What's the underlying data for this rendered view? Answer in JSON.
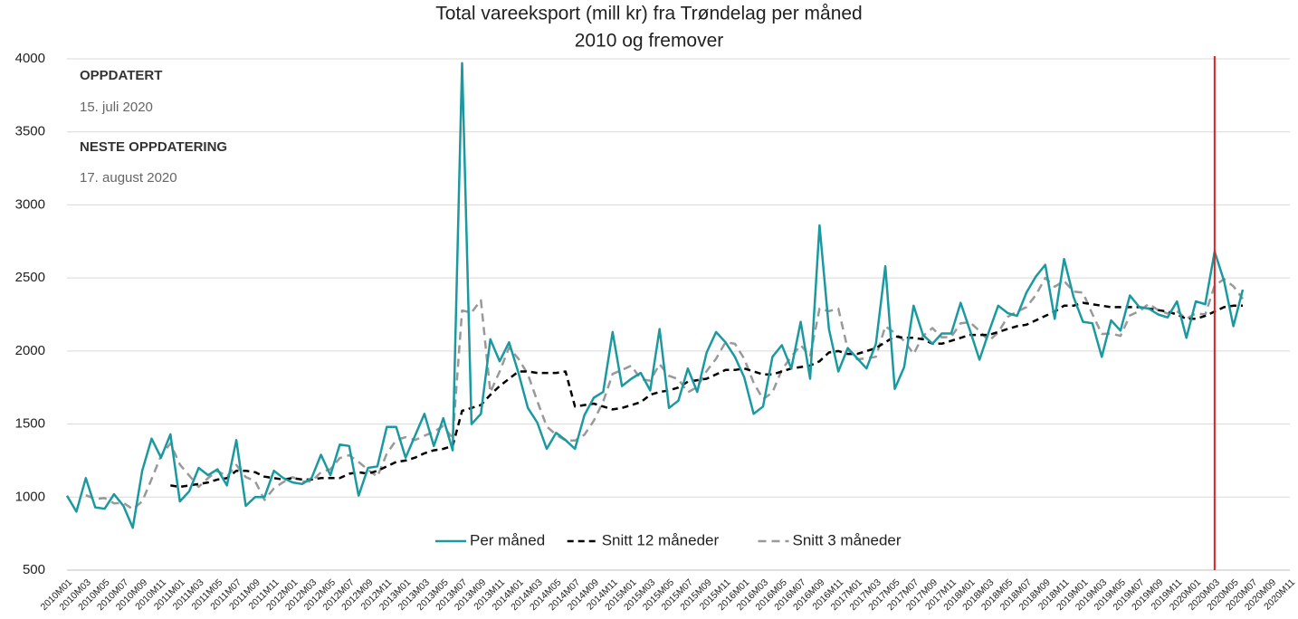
{
  "chart_data": {
    "type": "line",
    "title": "Total vareeksport (mill kr) fra Trøndelag per måned",
    "subtitle": "2010 og fremover",
    "annotations": [
      "OPPDATERT",
      "15. juli 2020",
      "NESTE OPPDATERING",
      "17. august 2020"
    ],
    "categories": [
      "2010M01",
      null,
      "2010M03",
      null,
      "2010M05",
      null,
      "2010M07",
      null,
      "2010M09",
      null,
      "2010M11",
      null,
      "2011M01",
      null,
      "2011M03",
      null,
      "2011M05",
      null,
      "2011M07",
      null,
      "2011M09",
      null,
      "2011M11",
      null,
      "2012M01",
      null,
      "2012M03",
      null,
      "2012M05",
      null,
      "2012M07",
      null,
      "2012M09",
      null,
      "2012M11",
      null,
      "2013M01",
      null,
      "2013M03",
      null,
      "2013M05",
      null,
      "2013M07",
      null,
      "2013M09",
      null,
      "2013M11",
      null,
      "2014M01",
      null,
      "2014M03",
      null,
      "2014M05",
      null,
      "2014M07",
      null,
      "2014M09",
      null,
      "2014M11",
      null,
      "2015M01",
      null,
      "2015M03",
      null,
      "2015M05",
      null,
      "2015M07",
      null,
      "2015M09",
      null,
      "2015M11",
      null,
      "2016M01",
      null,
      "2016M03",
      null,
      "2016M05",
      null,
      "2016M07",
      null,
      "2016M09",
      null,
      "2016M11",
      null,
      "2017M01",
      null,
      "2017M03",
      null,
      "2017M05",
      null,
      "2017M07",
      null,
      "2017M09",
      null,
      "2017M11",
      null,
      "2018M01",
      null,
      "2018M03",
      null,
      "2018M05",
      null,
      "2018M07",
      null,
      "2018M09",
      null,
      "2018M11",
      null,
      "2019M01",
      null,
      "2019M03",
      null,
      "2019M05",
      null,
      "2019M07",
      null,
      "2019M09",
      null,
      "2019M11",
      null,
      "2020M01",
      null,
      "2020M03",
      null,
      "2020M05",
      null,
      "2020M07",
      null,
      "2020M09",
      null,
      "2020M11"
    ],
    "series": [
      {
        "name": "Per måned",
        "color": "#1a9aa0",
        "dash": "none",
        "values": [
          1010,
          900,
          1130,
          930,
          920,
          1020,
          940,
          790,
          1180,
          1400,
          1270,
          1430,
          970,
          1040,
          1200,
          1150,
          1190,
          1080,
          1390,
          940,
          1000,
          1000,
          1180,
          1130,
          1100,
          1090,
          1130,
          1290,
          1150,
          1360,
          1350,
          1010,
          1200,
          1210,
          1480,
          1480,
          1270,
          1420,
          1570,
          1350,
          1540,
          1320,
          3970,
          1500,
          1570,
          2080,
          1930,
          2060,
          1850,
          1610,
          1510,
          1330,
          1440,
          1390,
          1330,
          1560,
          1680,
          1720,
          2130,
          1760,
          1810,
          1850,
          1730,
          2150,
          1610,
          1660,
          1880,
          1720,
          1990,
          2130,
          2060,
          1960,
          1820,
          1570,
          1620,
          1960,
          2040,
          1880,
          2200,
          1810,
          2860,
          2150,
          1860,
          2020,
          1950,
          1880,
          2050,
          2580,
          1740,
          1890,
          2310,
          2110,
          2050,
          2120,
          2120,
          2330,
          2140,
          1940,
          2130,
          2310,
          2260,
          2240,
          2400,
          2510,
          2590,
          2220,
          2630,
          2370,
          2200,
          2190,
          1960,
          2210,
          2140,
          2380,
          2300,
          2290,
          2250,
          2230,
          2340,
          2090,
          2340,
          2320,
          2680,
          2480,
          2170,
          2420,
          null,
          null,
          null,
          null,
          null
        ]
      },
      {
        "name": "Snitt 12 måneder",
        "color": "#000000",
        "dash": "7 5",
        "values": [
          null,
          null,
          null,
          null,
          null,
          null,
          null,
          null,
          null,
          null,
          null,
          1080,
          1070,
          1080,
          1090,
          1100,
          1120,
          1130,
          1180,
          1180,
          1170,
          1140,
          1130,
          1120,
          1130,
          1120,
          1120,
          1130,
          1130,
          1130,
          1160,
          1170,
          1160,
          1180,
          1210,
          1240,
          1250,
          1270,
          1300,
          1320,
          1330,
          1350,
          1590,
          1610,
          1630,
          1700,
          1760,
          1810,
          1860,
          1860,
          1850,
          1850,
          1850,
          1860,
          1620,
          1630,
          1640,
          1620,
          1600,
          1610,
          1630,
          1650,
          1700,
          1720,
          1730,
          1750,
          1790,
          1800,
          1810,
          1840,
          1870,
          1870,
          1880,
          1860,
          1840,
          1840,
          1860,
          1880,
          1890,
          1900,
          1930,
          1990,
          2000,
          1980,
          1980,
          2000,
          2020,
          2060,
          2100,
          2090,
          2090,
          2080,
          2050,
          2050,
          2070,
          2090,
          2110,
          2110,
          2110,
          2130,
          2150,
          2170,
          2180,
          2210,
          2240,
          2270,
          2310,
          2310,
          2330,
          2320,
          2310,
          2300,
          2300,
          2300,
          2300,
          2290,
          2280,
          2270,
          2250,
          2220,
          2220,
          2240,
          2270,
          2300,
          2310,
          2310,
          null,
          null,
          null,
          null,
          null
        ]
      },
      {
        "name": "Snitt 3 måneder",
        "color": "#999999",
        "dash": "9 6",
        "values": [
          null,
          null,
          1013,
          987,
          993,
          957,
          960,
          917,
          970,
          1123,
          1283,
          1367,
          1223,
          1147,
          1070,
          1130,
          1180,
          1140,
          1220,
          1137,
          1110,
          980,
          1060,
          1103,
          1137,
          1107,
          1107,
          1170,
          1190,
          1267,
          1287,
          1240,
          1187,
          1140,
          1297,
          1390,
          1410,
          1390,
          1420,
          1447,
          1487,
          1403,
          2277,
          2263,
          2347,
          1717,
          1860,
          2023,
          1947,
          1840,
          1657,
          1483,
          1427,
          1387,
          1387,
          1427,
          1523,
          1653,
          1843,
          1870,
          1900,
          1807,
          1797,
          1910,
          1830,
          1807,
          1717,
          1753,
          1863,
          1947,
          2060,
          2050,
          1947,
          1783,
          1670,
          1717,
          1873,
          1960,
          2040,
          1963,
          2290,
          2273,
          2290,
          2010,
          1943,
          1950,
          1960,
          2170,
          2123,
          2070,
          1980,
          2103,
          2157,
          2093,
          2097,
          2190,
          2197,
          2137,
          2070,
          2127,
          2233,
          2270,
          2300,
          2383,
          2500,
          2440,
          2480,
          2407,
          2400,
          2253,
          2117,
          2120,
          2103,
          2243,
          2273,
          2323,
          2280,
          2257,
          2273,
          2220,
          2257,
          2250,
          2447,
          2493,
          2443,
          2357,
          null,
          null,
          null,
          null,
          null
        ]
      }
    ],
    "ylim": [
      500,
      4000
    ],
    "yticks": [
      500,
      1000,
      1500,
      2000,
      2500,
      3000,
      3500,
      4000
    ],
    "grid": true,
    "legend": "bottom",
    "vline": {
      "category": "2020M03",
      "color": "#e02020"
    }
  }
}
